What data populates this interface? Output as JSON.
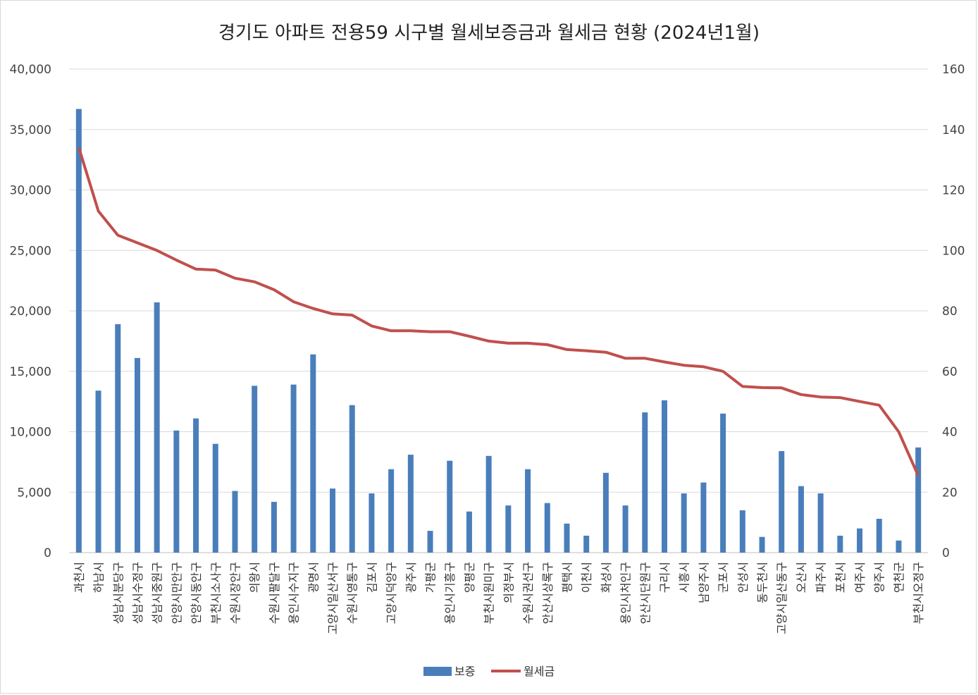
{
  "chart_data": {
    "type": "bar",
    "title": "경기도 아파트 전용59 시구별 월세보증금과 월세금 현황 (2024년1월)",
    "xlabel": "",
    "ylabel": "",
    "ylim": [
      0,
      40000
    ],
    "y2lim": [
      0,
      160
    ],
    "grid": true,
    "legend_position": "bottom",
    "y_ticks": [
      "0",
      "5,000",
      "10,000",
      "15,000",
      "20,000",
      "25,000",
      "30,000",
      "35,000",
      "40,000"
    ],
    "y2_ticks": [
      "0",
      "20",
      "40",
      "60",
      "80",
      "100",
      "120",
      "140",
      "160"
    ],
    "categories": [
      "과천시",
      "하남시",
      "성남시분당구",
      "성남시수정구",
      "성남시중원구",
      "안양시만안구",
      "안양시동안구",
      "부천시소사구",
      "수원시장안구",
      "의왕시",
      "수원시팔달구",
      "용인시수지구",
      "광명시",
      "고양시일산서구",
      "수원시영통구",
      "김포시",
      "고양시덕양구",
      "광주시",
      "가평군",
      "용인시기흥구",
      "양평군",
      "부천시원미구",
      "의정부시",
      "수원시권선구",
      "안산시상록구",
      "평택시",
      "이천시",
      "화성시",
      "용인시처인구",
      "안산시단원구",
      "구리시",
      "시흥시",
      "남양주시",
      "군포시",
      "안성시",
      "동두천시",
      "고양시일산동구",
      "오산시",
      "파주시",
      "포천시",
      "여주시",
      "양주시",
      "연천군",
      "부천시오정구"
    ],
    "series": [
      {
        "name": "보증",
        "type": "bar",
        "axis": "left",
        "color": "#4a7ebb",
        "values": [
          36700,
          13400,
          18900,
          16100,
          20700,
          10100,
          11100,
          9000,
          5100,
          13800,
          4200,
          13900,
          16400,
          5300,
          12200,
          4900,
          6900,
          8100,
          1800,
          7600,
          3400,
          8000,
          3900,
          6900,
          4100,
          2400,
          1400,
          6600,
          3900,
          11600,
          12600,
          4900,
          5800,
          11500,
          3500,
          1300,
          8400,
          5500,
          4900,
          1400,
          2000,
          2800,
          1000,
          8700
        ]
      },
      {
        "name": "월세금",
        "type": "line",
        "axis": "right",
        "color": "#c0504d",
        "values": [
          134,
          113,
          105,
          102.5,
          100,
          96.8,
          93.8,
          93.5,
          90.8,
          89.6,
          87,
          83,
          80.8,
          79,
          78.6,
          75,
          73.4,
          73.4,
          73.1,
          73.1,
          71.6,
          70,
          69.3,
          69.3,
          68.8,
          67.2,
          66.8,
          66.3,
          64.3,
          64.3,
          63.1,
          62,
          61.5,
          60,
          55,
          54.6,
          54.5,
          52.3,
          51.5,
          51.3,
          50,
          48.8,
          40,
          25.5
        ]
      }
    ]
  }
}
